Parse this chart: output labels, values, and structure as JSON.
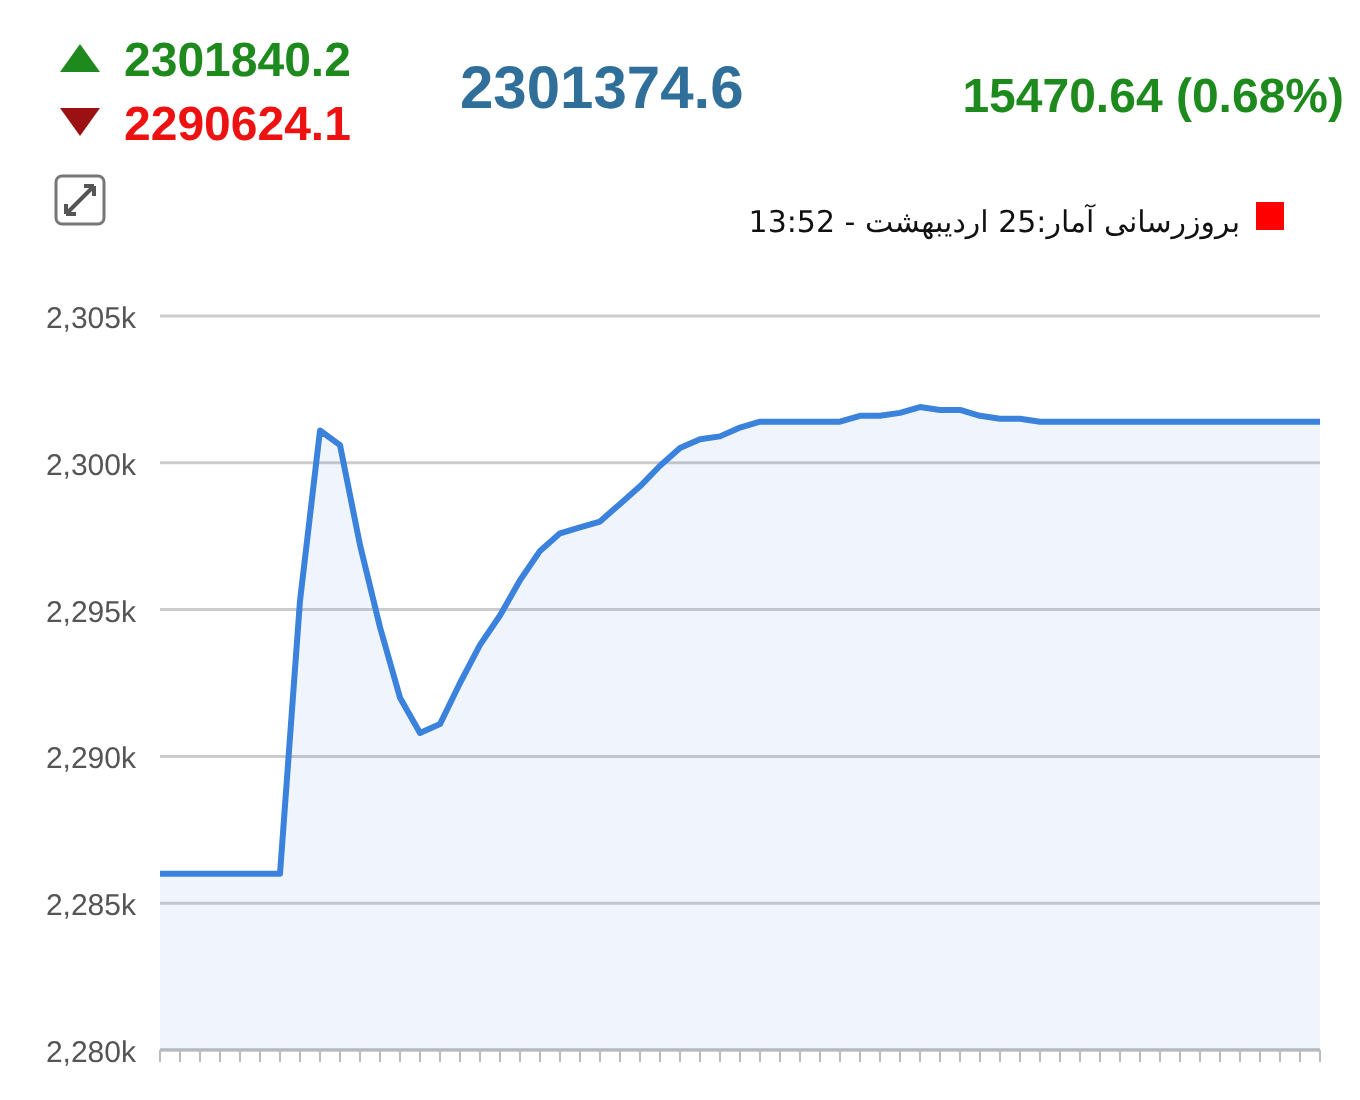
{
  "chart_data": {
    "type": "area",
    "annotations": [
      "2301840.2",
      "2290624.1",
      "2301374.6",
      "15470.64 (0.68%)",
      "بروزرسانی آمار:25 اردیبهشت - 13:52"
    ],
    "categories": [
      null,
      null,
      null,
      null,
      null,
      null,
      null,
      null,
      null,
      null,
      null,
      null,
      null,
      null,
      null,
      null,
      null,
      null,
      null,
      null,
      null,
      null,
      null,
      null,
      null,
      null,
      null,
      null,
      null,
      null,
      null,
      null,
      null,
      null,
      null,
      null,
      null,
      null,
      null,
      null,
      null,
      null,
      null,
      null,
      null,
      null,
      null,
      null,
      null,
      null,
      null,
      null,
      null,
      null,
      null,
      null,
      null,
      null,
      null
    ],
    "series": [
      {
        "color": "#3a82dc",
        "values": [
          2286.0,
          2286.0,
          2286.0,
          2286.0,
          2286.0,
          2286.0,
          2286.0,
          2295.3,
          2301.1,
          2300.6,
          2297.2,
          2294.4,
          2292.0,
          2290.8,
          2291.1,
          2292.5,
          2293.8,
          2294.8,
          2296.0,
          2297.0,
          2297.6,
          2297.8,
          2298.0,
          2298.6,
          2299.2,
          2299.9,
          2300.5,
          2300.8,
          2300.9,
          2301.2,
          2301.4,
          2301.4,
          2301.4,
          2301.4,
          2301.4,
          2301.6,
          2301.6,
          2301.7,
          2301.9,
          2301.8,
          2301.8,
          2301.6,
          2301.5,
          2301.5,
          2301.4,
          2301.4,
          2301.4,
          2301.4,
          2301.4,
          2301.4,
          2301.4,
          2301.4,
          2301.4,
          2301.4,
          2301.4,
          2301.4,
          2301.4,
          2301.4,
          2301.4
        ]
      }
    ],
    "ylim": [
      2280,
      2305
    ],
    "yticks": [
      {
        "value": 2280,
        "label": "2,280k"
      },
      {
        "value": 2285,
        "label": "2,285k"
      },
      {
        "value": 2290,
        "label": "2,290k"
      },
      {
        "value": 2295,
        "label": "2,295k"
      },
      {
        "value": 2300,
        "label": "2,300k"
      },
      {
        "value": 2305,
        "label": "2,305k"
      }
    ],
    "grid": "y",
    "tick_labels": "y"
  }
}
